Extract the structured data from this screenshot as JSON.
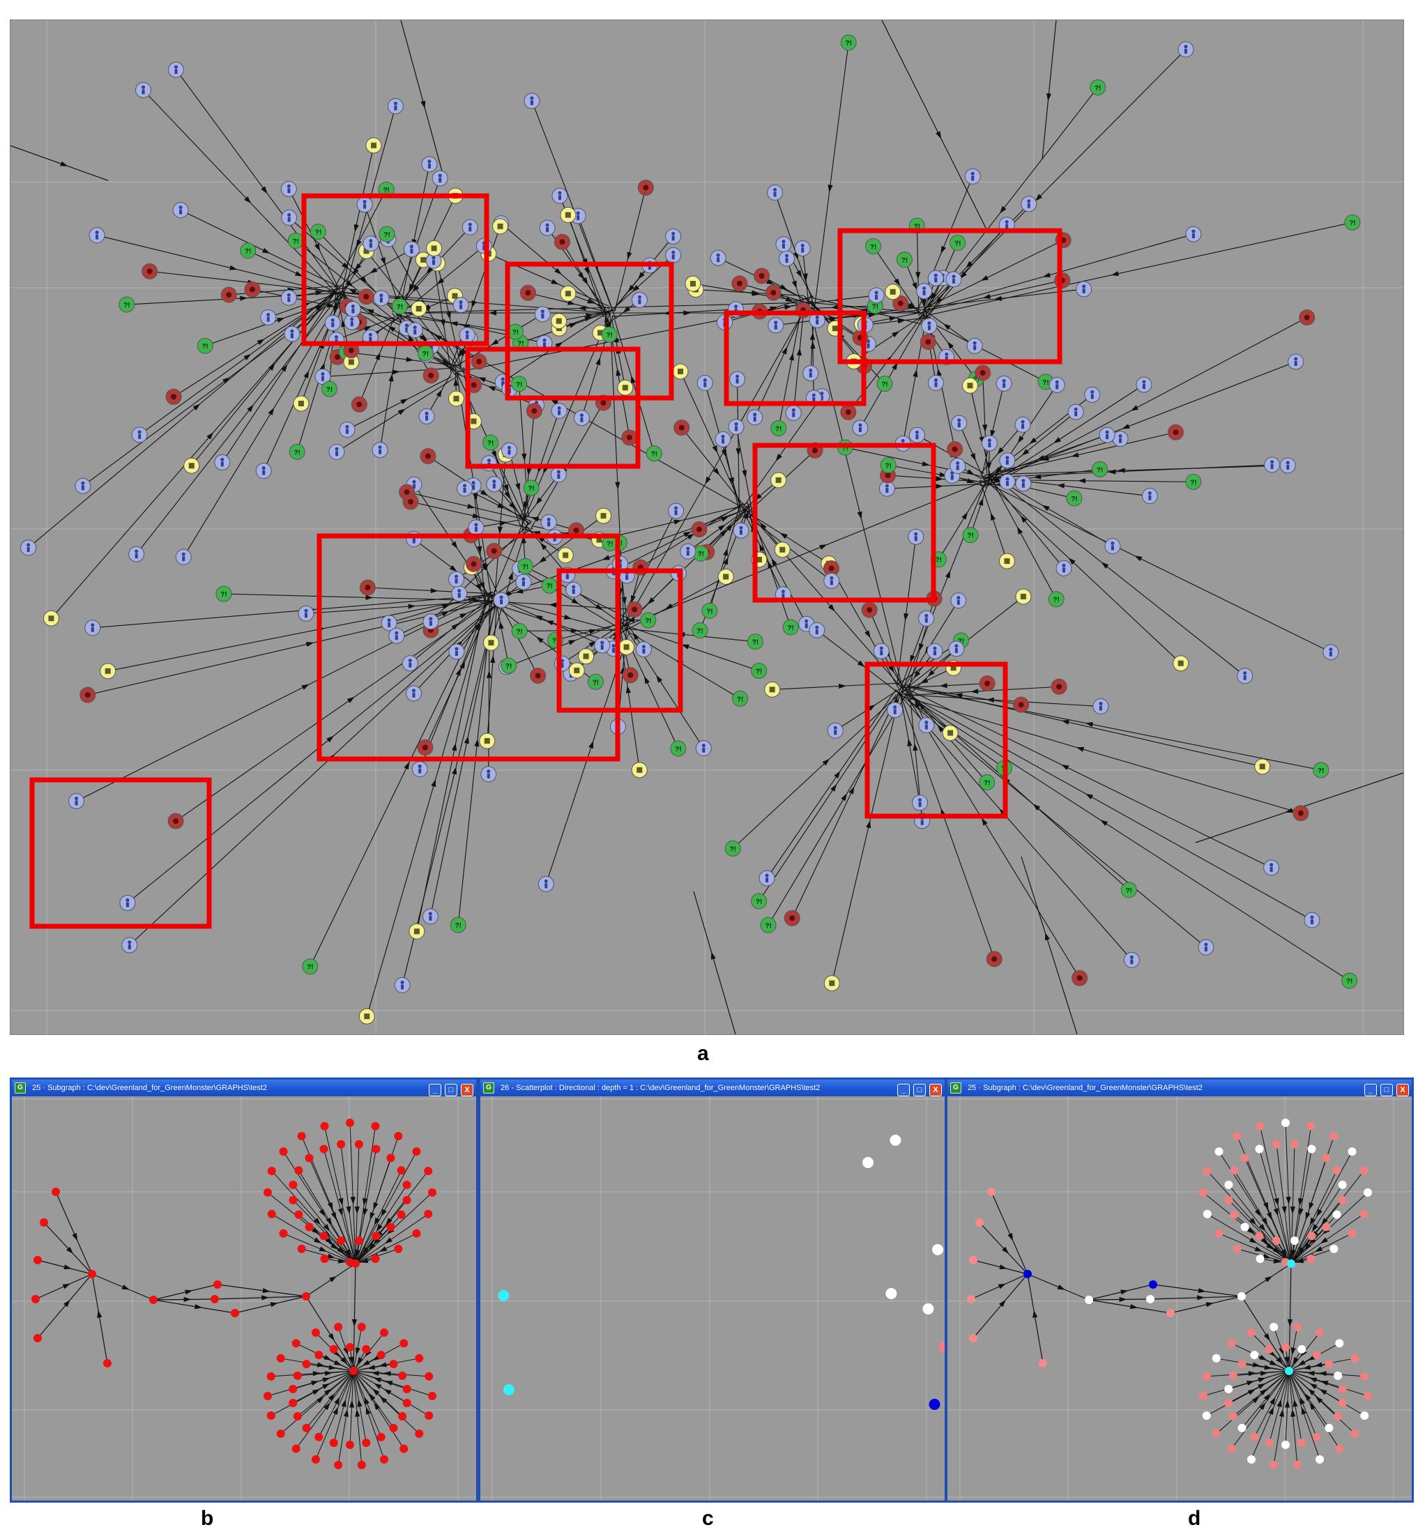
{
  "captions": {
    "a": "a",
    "b": "b",
    "c": "c",
    "d": "d"
  },
  "panel_a": {
    "node_colors": {
      "person": "#a6b1e6",
      "unknown": "#3fb44a",
      "doc": "#f5f090",
      "threat": "#b03a36"
    },
    "node_glyph": {
      "unknown": "?!"
    },
    "highlight_color": "#ee0000"
  },
  "windows": [
    {
      "icon": "G",
      "title": "25 · Subgraph : C:\\dev\\Greenland_for_GreenMonster\\GRAPHS\\test2",
      "min": "_",
      "max": "□",
      "close": "X"
    },
    {
      "icon": "G",
      "title": "26 - Scatterplot : Directional : depth = 1 : C:\\dev\\Greenland_for_GreenMonster\\GRAPHS\\test2",
      "min": "_",
      "max": "□",
      "close": "X"
    },
    {
      "icon": "G",
      "title": "25 · Subgraph : C:\\dev\\Greenland_for_GreenMonster\\GRAPHS\\test2",
      "min": "_",
      "max": "□",
      "close": "X"
    }
  ],
  "colors": {
    "red": "#ee1111",
    "salmon": "#f08080",
    "white": "#ffffff",
    "cyan": "#33f0ff",
    "blue": "#0000dd",
    "pink": "#f58b8b"
  }
}
